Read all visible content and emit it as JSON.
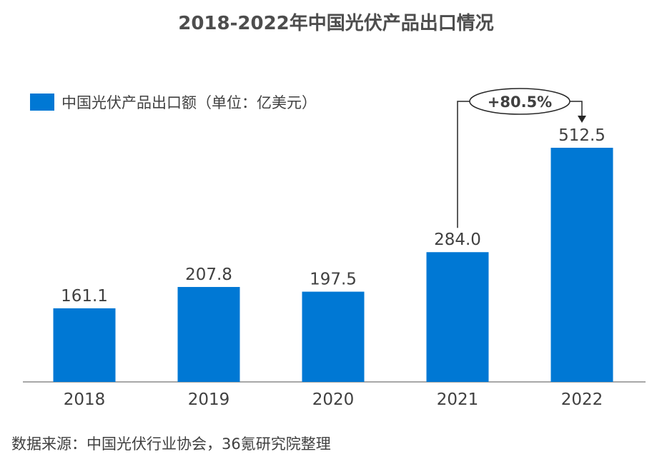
{
  "chart_data": {
    "type": "bar",
    "title": "2018-2022年中国光伏产品出口情况",
    "categories": [
      "2018",
      "2019",
      "2020",
      "2021",
      "2022"
    ],
    "series": [
      {
        "name": "中国光伏产品出口额（单位：亿美元）",
        "values": [
          161.1,
          207.8,
          197.5,
          284.0,
          512.5
        ]
      }
    ],
    "data_labels": [
      "161.1",
      "207.8",
      "197.5",
      "284.0",
      "512.5"
    ],
    "ylim": [
      0,
      512.5
    ],
    "grid": false,
    "legend_position": "top-left",
    "annotation": {
      "from": "2021",
      "to": "2022",
      "text": "+80.5%"
    },
    "bar_color": "#0078d4"
  },
  "source_note": "数据来源：中国光伏行业协会，36氪研究院整理"
}
